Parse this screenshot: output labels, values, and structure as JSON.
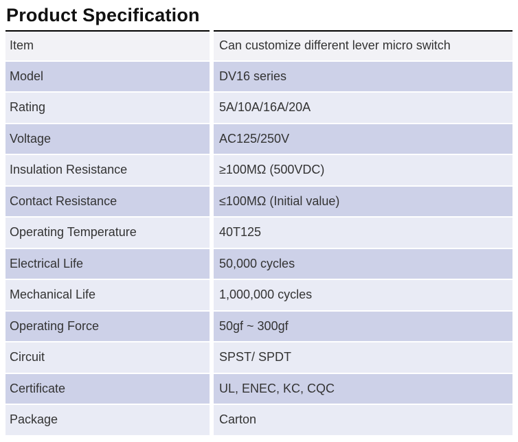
{
  "title": "Product Specification",
  "table": {
    "rows": [
      {
        "label": "Item",
        "value": "Can customize different lever micro switch"
      },
      {
        "label": "Model",
        "value": "DV16 series"
      },
      {
        "label": "Rating",
        "value": "5A/10A/16A/20A"
      },
      {
        "label": "Voltage",
        "value": "AC125/250V"
      },
      {
        "label": "Insulation Resistance",
        "value": "≥100MΩ (500VDC)"
      },
      {
        "label": "Contact Resistance",
        "value": "≤100MΩ (Initial value)"
      },
      {
        "label": "Operating Temperature",
        "value": "40T125"
      },
      {
        "label": "Electrical Life",
        "value": "50,000 cycles"
      },
      {
        "label": "Mechanical Life",
        "value": "1,000,000 cycles"
      },
      {
        "label": "Operating Force",
        "value": "50gf ~ 300gf"
      },
      {
        "label": "Circuit",
        "value": "SPST/ SPDT"
      },
      {
        "label": "Certificate",
        "value": "UL, ENEC, KC, CQC"
      },
      {
        "label": "Package",
        "value": "Carton"
      }
    ]
  },
  "colors": {
    "title": "#111111",
    "text": "#333333",
    "row_light": "#e9ebf5",
    "row_dark": "#cdd1e8",
    "row_header": "#f2f2f6",
    "border": "#000000"
  }
}
